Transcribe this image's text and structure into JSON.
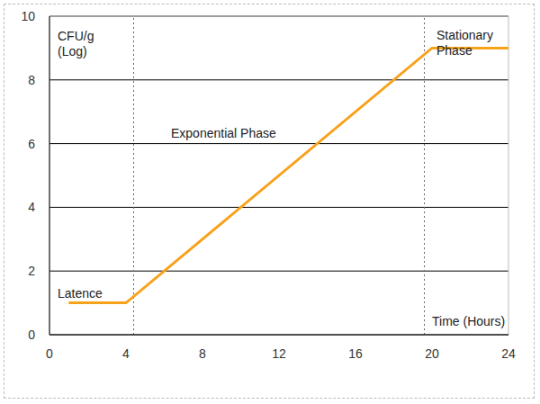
{
  "chart_data": {
    "type": "line",
    "x_label": "Time (Hours)",
    "y_label": "CFU/g (Log)",
    "x": [
      1,
      4,
      20,
      24
    ],
    "values": [
      1,
      1,
      9,
      9
    ],
    "color": "#f7a21b",
    "xlim": [
      0,
      24
    ],
    "xticks": [
      0,
      4,
      8,
      12,
      16,
      20,
      24
    ],
    "ylim": [
      0,
      10
    ],
    "yticks": [
      0,
      2,
      4,
      6,
      8,
      10
    ],
    "grid": true,
    "annotations": [
      "Latence",
      "Exponential Phase",
      "Stationary Phase"
    ],
    "phase_boundaries": [
      4.4,
      19.6
    ]
  }
}
